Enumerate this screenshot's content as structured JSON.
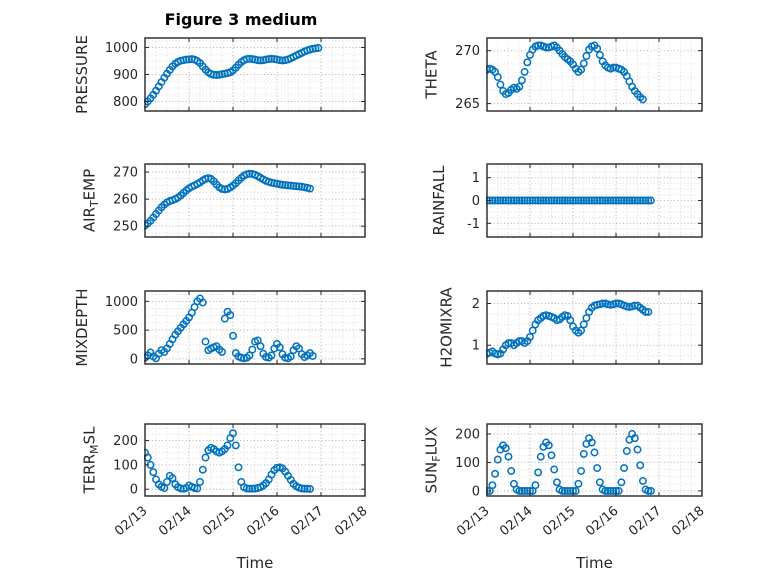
{
  "chart_data": {
    "type": "scatter",
    "title": "Figure 3 medium",
    "xlabel": "Time",
    "grid": "on",
    "marker": "o",
    "marker_color": "#0072BD",
    "xlim": [
      0,
      5
    ],
    "x_tick_values": [
      0,
      1,
      2,
      3,
      4,
      5
    ],
    "x_tick_labels": [
      "02/13",
      "02/14",
      "02/15",
      "02/16",
      "02/17",
      "02/18"
    ],
    "x_unit": "days since 02/13",
    "x": [
      0,
      0.0625,
      0.125,
      0.1875,
      0.25,
      0.3125,
      0.375,
      0.4375,
      0.5,
      0.5625,
      0.625,
      0.6875,
      0.75,
      0.8125,
      0.875,
      0.9375,
      1,
      1.0625,
      1.125,
      1.1875,
      1.25,
      1.3125,
      1.375,
      1.4375,
      1.5,
      1.5625,
      1.625,
      1.6875,
      1.75,
      1.8125,
      1.875,
      1.9375,
      2,
      2.0625,
      2.125,
      2.1875,
      2.25,
      2.3125,
      2.375,
      2.4375,
      2.5,
      2.5625,
      2.625,
      2.6875,
      2.75,
      2.8125,
      2.875,
      2.9375,
      3,
      3.0625,
      3.125,
      3.1875,
      3.25,
      3.3125,
      3.375,
      3.4375,
      3.5,
      3.5625,
      3.625,
      3.6875,
      3.75,
      3.8125,
      3.875,
      3.9375
    ],
    "subplots": [
      {
        "name": "pressure",
        "ylabel": "PRESSURE",
        "yticks": [
          800,
          900,
          1000
        ],
        "ylim": [
          765,
          1035
        ],
        "y": [
          790,
          800,
          812,
          825,
          840,
          856,
          872,
          888,
          903,
          917,
          930,
          940,
          947,
          951,
          953,
          955,
          956,
          957,
          955,
          950,
          942,
          930,
          918,
          908,
          902,
          899,
          898,
          899,
          901,
          903,
          905,
          908,
          915,
          925,
          936,
          946,
          953,
          957,
          958,
          957,
          955,
          953,
          952,
          953,
          955,
          957,
          958,
          957,
          955,
          953,
          952,
          953,
          956,
          960,
          965,
          970,
          975,
          980,
          985,
          989,
          992,
          995,
          997,
          998
        ]
      },
      {
        "name": "theta",
        "ylabel": "THETA",
        "yticks": [
          265,
          270
        ],
        "ylim": [
          264.3,
          271.2
        ],
        "y": [
          268.2,
          268.3,
          268.2,
          268,
          267.5,
          266.8,
          266.2,
          265.9,
          266,
          266.3,
          266.5,
          266.4,
          266.6,
          267.2,
          268,
          268.9,
          269.6,
          270.1,
          270.4,
          270.5,
          270.5,
          270.4,
          270.3,
          270.3,
          270.4,
          270.5,
          270.3,
          270,
          269.7,
          269.4,
          269.2,
          269,
          268.7,
          268.3,
          268,
          268.2,
          268.8,
          269.5,
          270.1,
          270.4,
          270.5,
          270.2,
          269.6,
          269,
          268.6,
          268.4,
          268.3,
          268.4,
          268.4,
          268.3,
          268.2,
          268,
          267.6,
          267.1,
          266.6,
          266.2,
          265.9,
          265.6,
          265.4,
          null,
          null,
          null,
          null,
          null
        ]
      },
      {
        "name": "airtemp",
        "ylabel": "AIR_{T}EMP",
        "yticks": [
          250,
          260,
          270
        ],
        "ylim": [
          246,
          273
        ],
        "y": [
          250.3,
          251,
          252,
          253.2,
          254.5,
          255.8,
          257,
          258,
          258.8,
          259.3,
          259.6,
          260,
          260.6,
          261.4,
          262.3,
          263.2,
          264,
          264.6,
          265.1,
          265.6,
          266.2,
          266.9,
          267.5,
          267.8,
          267.5,
          266.6,
          265.4,
          264.4,
          263.8,
          263.6,
          263.8,
          264.3,
          265,
          265.9,
          266.9,
          267.9,
          268.7,
          269.2,
          269.4,
          269.3,
          269,
          268.5,
          267.9,
          267.3,
          266.8,
          266.4,
          266.1,
          265.9,
          265.7,
          265.5,
          265.3,
          265.2,
          265.1,
          265,
          264.9,
          264.8,
          264.7,
          264.6,
          264.4,
          264.2,
          263.9,
          null,
          null,
          null
        ]
      },
      {
        "name": "rainfall",
        "ylabel": "RAINFALL",
        "yticks": [
          -1,
          0,
          1
        ],
        "ylim": [
          -1.6,
          1.6
        ],
        "y": [
          0,
          0,
          0,
          0,
          0,
          0,
          0,
          0,
          0,
          0,
          0,
          0,
          0,
          0,
          0,
          0,
          0,
          0,
          0,
          0,
          0,
          0,
          0,
          0,
          0,
          0,
          0,
          0,
          0,
          0,
          0,
          0,
          0,
          0,
          0,
          0,
          0,
          0,
          0,
          0,
          0,
          0,
          0,
          0,
          0,
          0,
          0,
          0,
          0,
          0,
          0,
          0,
          0,
          0,
          0,
          0,
          0,
          0,
          0,
          0,
          0,
          0,
          null,
          null
        ]
      },
      {
        "name": "mixdepth",
        "ylabel": "MIXDEPTH",
        "yticks": [
          0,
          500,
          1000
        ],
        "ylim": [
          -90,
          1180
        ],
        "y": [
          20,
          60,
          110,
          40,
          10,
          90,
          150,
          120,
          180,
          260,
          340,
          420,
          480,
          540,
          600,
          660,
          720,
          800,
          900,
          1000,
          1050,
          980,
          300,
          150,
          180,
          200,
          220,
          160,
          120,
          700,
          820,
          760,
          400,
          100,
          40,
          20,
          10,
          20,
          60,
          160,
          300,
          320,
          220,
          90,
          30,
          20,
          60,
          180,
          260,
          200,
          80,
          20,
          10,
          40,
          150,
          220,
          180,
          80,
          30,
          60,
          100,
          50,
          null,
          null
        ]
      },
      {
        "name": "h2omixra",
        "ylabel": "H2OMIXRA",
        "yticks": [
          1,
          2
        ],
        "ylim": [
          0.55,
          2.3
        ],
        "y": [
          0.8,
          0.82,
          0.85,
          0.8,
          0.78,
          0.8,
          0.9,
          1,
          1.05,
          1.05,
          1,
          1.05,
          1.1,
          1.1,
          1.05,
          1.1,
          1.2,
          1.35,
          1.5,
          1.6,
          1.65,
          1.7,
          1.72,
          1.7,
          1.68,
          1.65,
          1.6,
          1.62,
          1.68,
          1.72,
          1.7,
          1.6,
          1.45,
          1.35,
          1.3,
          1.35,
          1.5,
          1.65,
          1.8,
          1.9,
          1.95,
          1.97,
          1.98,
          2,
          2,
          1.98,
          1.97,
          1.98,
          2,
          2,
          1.98,
          1.95,
          1.93,
          1.92,
          1.93,
          1.95,
          1.95,
          1.9,
          1.85,
          1.8,
          1.8,
          null,
          null,
          null
        ]
      },
      {
        "name": "terrmsl",
        "ylabel": "TERR_{M}SL",
        "yticks": [
          0,
          100,
          200
        ],
        "ylim": [
          -28,
          268
        ],
        "y": [
          150,
          130,
          100,
          70,
          40,
          20,
          10,
          5,
          30,
          55,
          45,
          20,
          8,
          3,
          2,
          5,
          15,
          10,
          5,
          3,
          30,
          80,
          130,
          160,
          170,
          165,
          155,
          150,
          155,
          165,
          180,
          210,
          230,
          180,
          90,
          30,
          8,
          3,
          2,
          2,
          3,
          5,
          8,
          15,
          25,
          40,
          60,
          78,
          88,
          90,
          85,
          72,
          55,
          38,
          22,
          12,
          6,
          3,
          2,
          2,
          1,
          null,
          null,
          null
        ]
      },
      {
        "name": "sunflux",
        "ylabel": "SUN_{F}LUX",
        "yticks": [
          0,
          100,
          200
        ],
        "ylim": [
          -18,
          235
        ],
        "y": [
          0,
          0,
          20,
          60,
          110,
          145,
          160,
          150,
          120,
          70,
          25,
          5,
          0,
          0,
          0,
          0,
          0,
          0,
          20,
          65,
          120,
          155,
          170,
          160,
          125,
          75,
          30,
          5,
          0,
          0,
          0,
          0,
          0,
          0,
          25,
          70,
          130,
          165,
          185,
          170,
          135,
          80,
          30,
          5,
          0,
          0,
          0,
          0,
          0,
          0,
          30,
          80,
          140,
          180,
          200,
          185,
          145,
          90,
          35,
          5,
          0,
          0,
          null,
          null
        ]
      }
    ]
  }
}
